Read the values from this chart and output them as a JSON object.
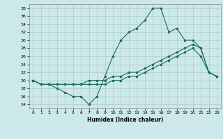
{
  "xlabel": "Humidex (Indice chaleur)",
  "bg_color": "#cce8e8",
  "line_color": "#1a6b5a",
  "grid_color": "#aacccc",
  "xlim": [
    -0.5,
    23.5
  ],
  "ylim": [
    13,
    39
  ],
  "yticks": [
    14,
    16,
    18,
    20,
    22,
    24,
    26,
    28,
    30,
    32,
    34,
    36,
    38
  ],
  "xticks": [
    0,
    1,
    2,
    3,
    4,
    5,
    6,
    7,
    8,
    9,
    10,
    11,
    12,
    13,
    14,
    15,
    16,
    17,
    18,
    19,
    20,
    21,
    22,
    23
  ],
  "line1_x": [
    0,
    1,
    2,
    3,
    4,
    5,
    6,
    7,
    8,
    9,
    10,
    11,
    12,
    13,
    14,
    15,
    16,
    17,
    18,
    19,
    20,
    21,
    22,
    23
  ],
  "line1_y": [
    20,
    19,
    19,
    18,
    17,
    16,
    16,
    14,
    16,
    21,
    26,
    30,
    32,
    33,
    35,
    38,
    38,
    32,
    33,
    30,
    30,
    28,
    22,
    21
  ],
  "line2_x": [
    0,
    1,
    2,
    3,
    4,
    5,
    6,
    7,
    8,
    9,
    10,
    11,
    12,
    13,
    14,
    15,
    16,
    17,
    18,
    19,
    20,
    21,
    22,
    23
  ],
  "line2_y": [
    20,
    19,
    19,
    19,
    19,
    19,
    19,
    20,
    20,
    20,
    21,
    21,
    22,
    22,
    23,
    24,
    25,
    26,
    27,
    28,
    29,
    28,
    22,
    21
  ],
  "line3_x": [
    0,
    1,
    2,
    3,
    4,
    5,
    6,
    7,
    8,
    9,
    10,
    11,
    12,
    13,
    14,
    15,
    16,
    17,
    18,
    19,
    20,
    21,
    22,
    23
  ],
  "line3_y": [
    20,
    19,
    19,
    19,
    19,
    19,
    19,
    19,
    19,
    19,
    20,
    20,
    21,
    21,
    22,
    23,
    24,
    25,
    26,
    27,
    28,
    26,
    22,
    21
  ]
}
